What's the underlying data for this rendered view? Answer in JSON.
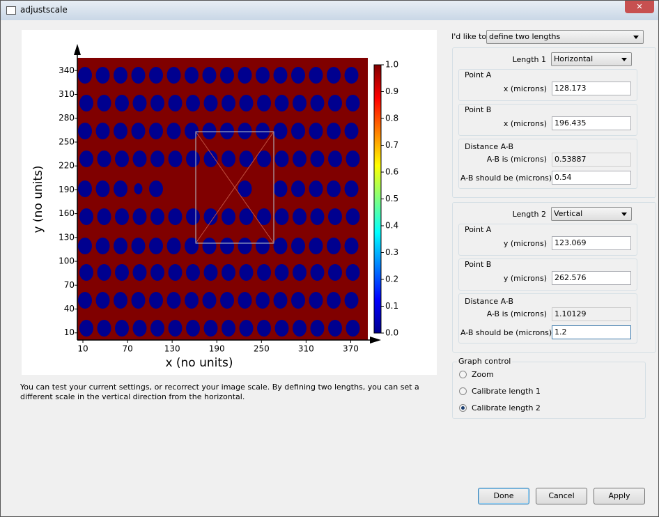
{
  "window": {
    "title": "adjustscale"
  },
  "plot": {
    "xlabel": "x  (no  units)",
    "ylabel": "y  (no  units)",
    "xlim": [
      2.5,
      393
    ],
    "xticks": [
      10,
      70,
      130,
      190,
      250,
      310,
      370
    ],
    "ylim": [
      1,
      356
    ],
    "yticks": [
      10,
      40,
      70,
      100,
      130,
      160,
      190,
      220,
      250,
      280,
      310,
      340
    ],
    "colorbar": {
      "lim": [
        0,
        1
      ],
      "ticks": [
        {
          "value": 0,
          "label": "0.0"
        },
        {
          "value": 0.1,
          "label": "0.1"
        },
        {
          "value": 0.2,
          "label": "0.2"
        },
        {
          "value": 0.3,
          "label": "0.3"
        },
        {
          "value": 0.4,
          "label": "0.4"
        },
        {
          "value": 0.5,
          "label": "0.5"
        },
        {
          "value": 0.6,
          "label": "0.6"
        },
        {
          "value": 0.7,
          "label": "0.7"
        },
        {
          "value": 0.8,
          "label": "0.8"
        },
        {
          "value": 0.9,
          "label": "0.9"
        },
        {
          "value": 1,
          "label": "1.0"
        }
      ]
    }
  },
  "description": "You can test your current settings, or recorrect your image scale. By defining two lengths, you can set a different scale in the vertical direction from the horizontal.",
  "mode": {
    "label": "I'd like to",
    "value": "define two lengths"
  },
  "length1": {
    "label": "Length 1",
    "direction": "Horizontal",
    "point_a": {
      "title": "Point A",
      "label": "x (microns)",
      "value": "128.173"
    },
    "point_b": {
      "title": "Point B",
      "label": "x (microns)",
      "value": "196.435"
    },
    "distance": {
      "title": "Distance A-B",
      "is_label": "A-B is (microns)",
      "is_value": "0.53887",
      "should_label": "A-B should be (microns)",
      "should_value": "0.54"
    }
  },
  "length2": {
    "label": "Length 2",
    "direction": "Vertical",
    "point_a": {
      "title": "Point A",
      "label": "y (microns)",
      "value": "123.069"
    },
    "point_b": {
      "title": "Point B",
      "label": "y (microns)",
      "value": "262.576"
    },
    "distance": {
      "title": "Distance A-B",
      "is_label": "A-B is (microns)",
      "is_value": "1.10129",
      "should_label": "A-B should be (microns)",
      "should_value": "1.2"
    }
  },
  "graph_control": {
    "title": "Graph control",
    "options": [
      "Zoom",
      "Calibrate length 1",
      "Calibrate length 2"
    ],
    "selected": 2
  },
  "buttons": [
    "Done",
    "Cancel",
    "Apply"
  ]
}
